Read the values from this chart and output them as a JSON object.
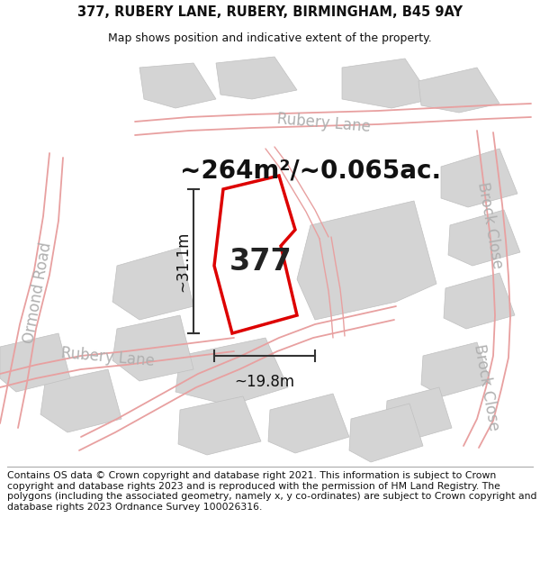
{
  "title": "377, RUBERY LANE, RUBERY, BIRMINGHAM, B45 9AY",
  "subtitle": "Map shows position and indicative extent of the property.",
  "area_label": "~264m²/~0.065ac.",
  "property_number": "377",
  "dim_height": "~31.1m",
  "dim_width": "~19.8m",
  "footer": "Contains OS data © Crown copyright and database right 2021. This information is subject to Crown copyright and database rights 2023 and is reproduced with the permission of HM Land Registry. The polygons (including the associated geometry, namely x, y co-ordinates) are subject to Crown copyright and database rights 2023 Ordnance Survey 100026316.",
  "bg_color": "#ffffff",
  "map_bg": "#ffffff",
  "road_line_color": "#e8a0a0",
  "block_color": "#d4d4d4",
  "block_edge_color": "#c0c0c0",
  "property_color": "#dd0000",
  "dim_color": "#333333",
  "text_color": "#111111",
  "road_label_color": "#b0b0b0",
  "area_fontsize": 20,
  "property_num_fontsize": 24,
  "dim_fontsize": 12,
  "road_label_fontsize": 12,
  "footer_fontsize": 7.8
}
